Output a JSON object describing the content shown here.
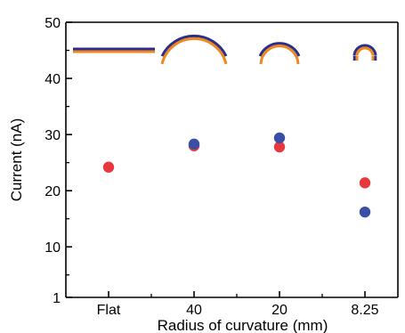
{
  "chart_data": {
    "type": "scatter",
    "title": "",
    "xlabel": "Radius of curvature (mm)",
    "ylabel": "Current (nA)",
    "categories": [
      "Flat",
      "40",
      "20",
      "8.25"
    ],
    "ylim": [
      1,
      50
    ],
    "yticks": [
      1,
      10,
      20,
      30,
      40,
      50
    ],
    "grid": false,
    "legend": "none",
    "series": [
      {
        "color": "#e8383d",
        "values": [
          24.2,
          28.0,
          27.8,
          21.4
        ]
      },
      {
        "color": "#3a4fa3",
        "values": [
          null,
          28.3,
          29.4,
          16.2
        ]
      }
    ],
    "inset_icons": [
      {
        "category": "Flat",
        "shape": "flat-strip-icon"
      },
      {
        "category": "40",
        "shape": "wide-arc-icon"
      },
      {
        "category": "20",
        "shape": "medium-arc-icon"
      },
      {
        "category": "8.25",
        "shape": "tight-arc-icon"
      }
    ],
    "icon_colors": {
      "outer": "#2b2f8a",
      "inner": "#f0861f"
    }
  }
}
